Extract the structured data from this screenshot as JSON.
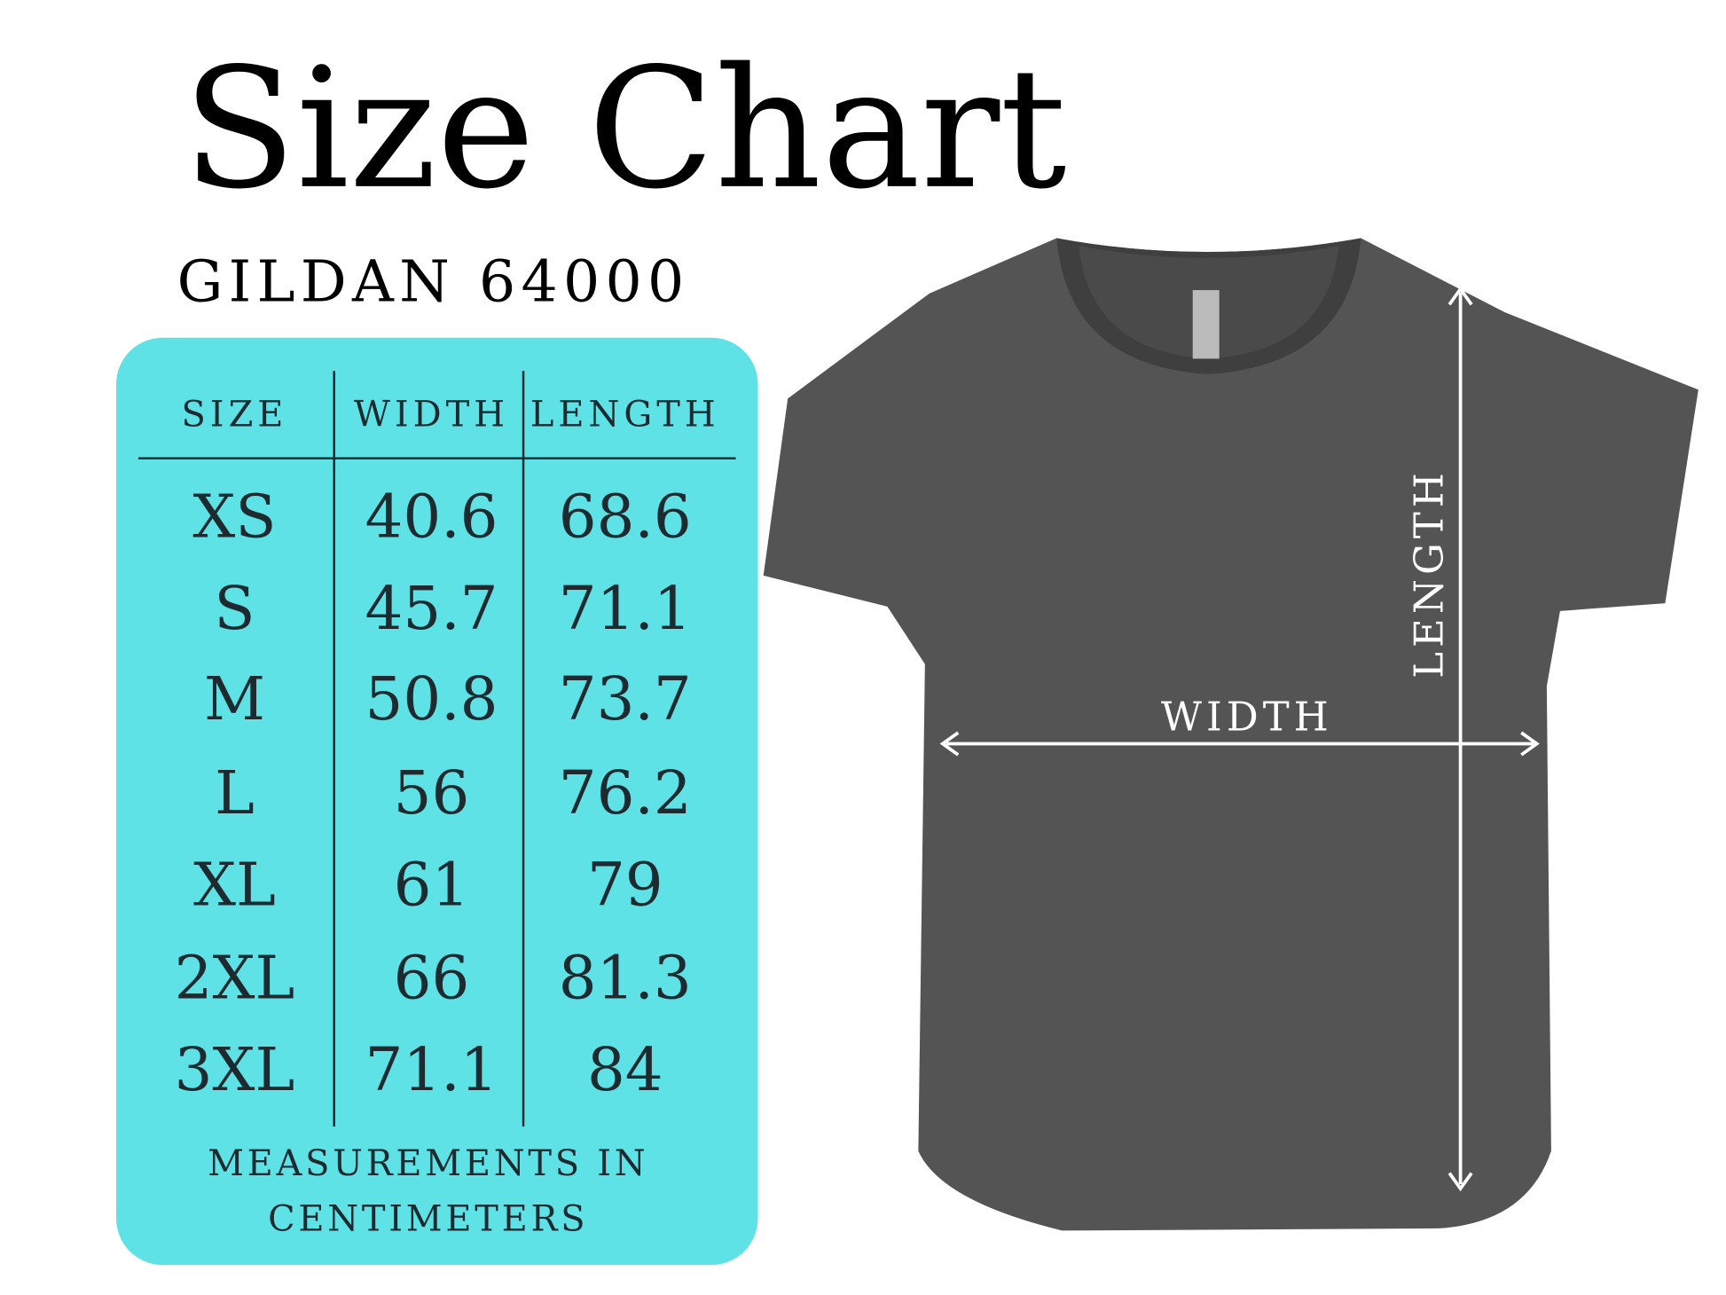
{
  "header": {
    "title": "Size Chart",
    "subtitle": "GILDAN 64000"
  },
  "table": {
    "columns": [
      "SIZE",
      "WIDTH",
      "LENGTH"
    ],
    "rows": [
      [
        "XS",
        "40.6",
        "68.6"
      ],
      [
        "S",
        "45.7",
        "71.1"
      ],
      [
        "M",
        "50.8",
        "73.7"
      ],
      [
        "L",
        "56",
        "76.2"
      ],
      [
        "XL",
        "61",
        "79"
      ],
      [
        "2XL",
        "66",
        "81.3"
      ],
      [
        "3XL",
        "71.1",
        "84"
      ]
    ],
    "note": [
      "MEASUREMENTS IN",
      "CENTIMETERS"
    ]
  },
  "diagram": {
    "width_label": "WIDTH",
    "length_label": "LENGTH"
  }
}
